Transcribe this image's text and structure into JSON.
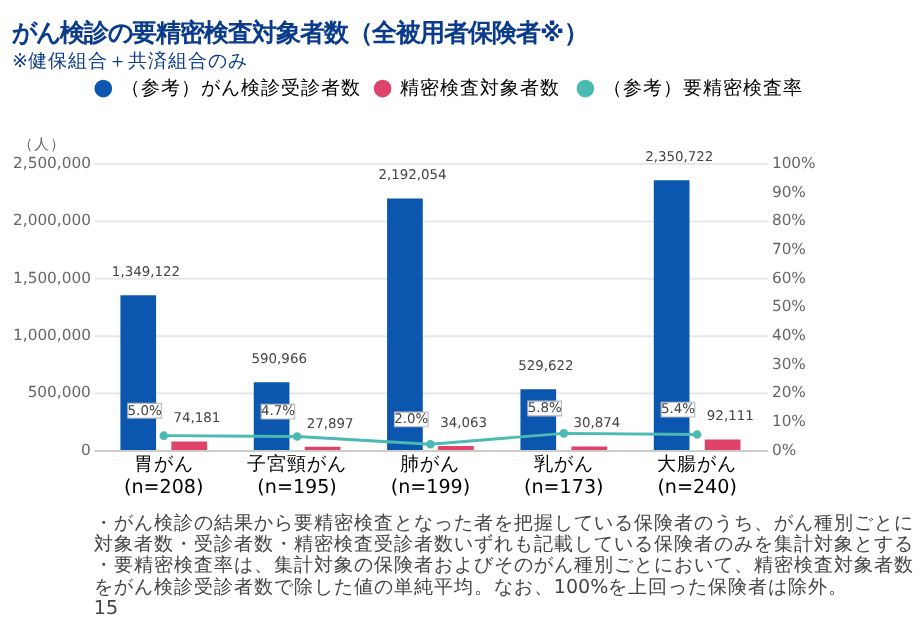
{
  "chart_data": {
    "type": "bar",
    "title": "がん検診の要精密検査対象者数（全被用者保険者※）",
    "subtitle": "※健保組合＋共済組合のみ",
    "ylabel": "（人）",
    "categories": [
      "胃がん (n=208)",
      "子宮頸がん (n=195)",
      "肺がん (n=199)",
      "乳がん (n=173)",
      "大腸がん (n=240)"
    ],
    "series": [
      {
        "name": "（参考）がん検診受診者数",
        "color": "#0b57b0",
        "values": [
          1349122,
          590966,
          2192054,
          529622,
          2350722
        ],
        "value_labels": [
          "1,349,122",
          "590,966",
          "2,192,054",
          "529,622",
          "2,350,722"
        ]
      },
      {
        "name": "精密検査対象者数",
        "color": "#e0436a",
        "values": [
          74181,
          27897,
          34063,
          30874,
          92111
        ],
        "value_labels": [
          "74,181",
          "27,897",
          "34,063",
          "30,874",
          "92,111"
        ]
      },
      {
        "name": "（参考）要精密検査率",
        "color": "#4bbab3",
        "type": "line",
        "axis": "y2",
        "marker": "circle",
        "values": [
          5.0,
          4.7,
          2.0,
          5.8,
          5.4
        ],
        "value_labels": [
          "5.0%",
          "4.7%",
          "2.0%",
          "5.8%",
          "5.4%"
        ]
      }
    ],
    "ylim": [
      0,
      2500000
    ],
    "yticks": [
      0,
      {
        "value": 500000,
        "label": "500,000"
      },
      {
        "value": 1000000,
        "label": "1,000,000"
      },
      {
        "value": 1500000,
        "label": "1,500,000"
      },
      {
        "value": 2000000,
        "label": "2,000,000"
      },
      {
        "value": 2500000,
        "label": "2,500,000"
      }
    ],
    "y2lim": [
      0,
      100
    ],
    "y2ticks": [
      {
        "value": 0,
        "label": "0%"
      },
      {
        "value": 10,
        "label": "10%"
      },
      {
        "value": 20,
        "label": "20%"
      },
      {
        "value": 30,
        "label": "30%"
      },
      {
        "value": 40,
        "label": "40%"
      },
      {
        "value": 50,
        "label": "50%"
      },
      {
        "value": 60,
        "label": "60%"
      },
      {
        "value": 70,
        "label": "70%"
      },
      {
        "value": 80,
        "label": "80%"
      },
      {
        "value": 90,
        "label": "90%"
      },
      {
        "value": 100,
        "label": "100%"
      }
    ],
    "grid": "y",
    "legend": "top",
    "annotations": [
      "・がん検診の結果から要精密検査となった者を把握している保険者のうち、がん種別ごとに対象者数・受診者数・精密検査受診者数いずれも記載している保険者のみを集計対象とする",
      "・要精密検査率は、集計対象の保険者およびそのがん種別ごとにおいて、精密検査対象者数をがん検診受診者数で除した値の単純平均。なお、100%を上回った保険者は除外。",
      "15"
    ]
  }
}
